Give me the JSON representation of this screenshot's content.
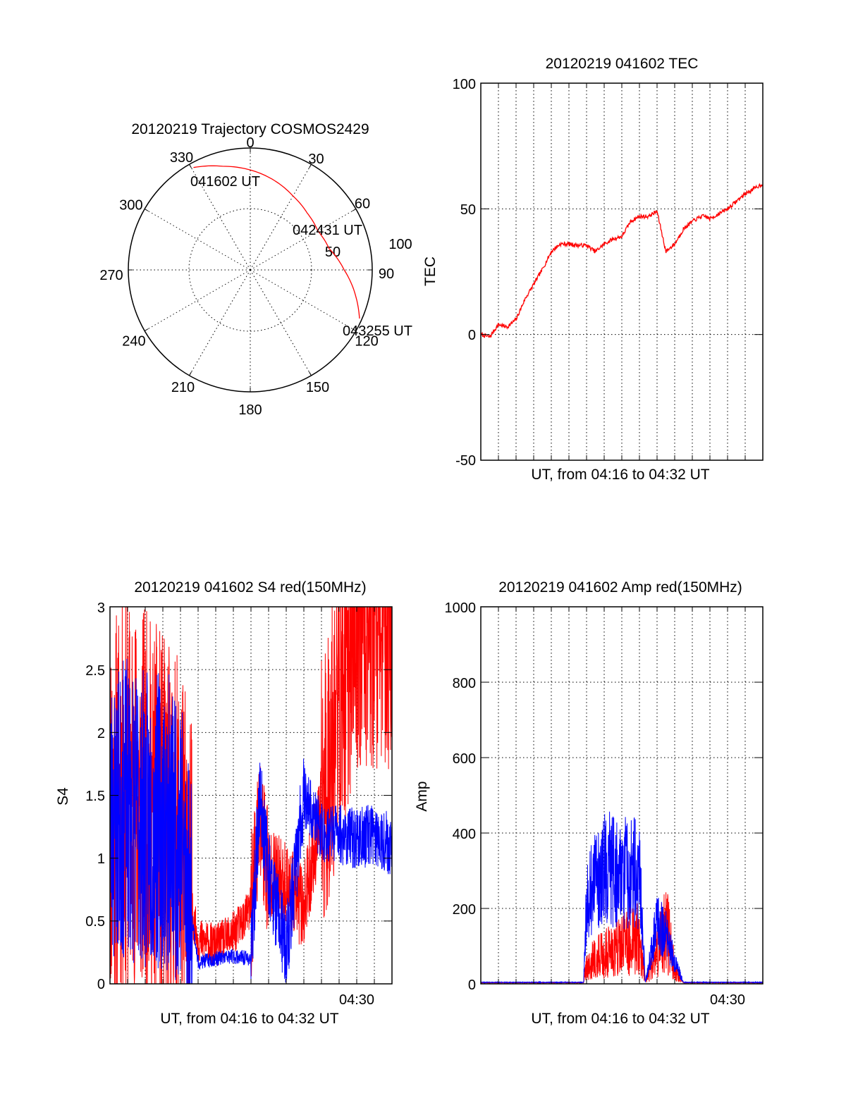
{
  "colors": {
    "red": "#ff0000",
    "blue": "#0000ff"
  },
  "polar": {
    "title": "20120219 Trajectory COSMOS2429",
    "azimuth_labels": [
      "0",
      "30",
      "60",
      "90",
      "120",
      "150",
      "180",
      "210",
      "240",
      "270",
      "300",
      "330"
    ],
    "range_labels": [
      "50",
      "100"
    ],
    "annotations": [
      "041602 UT",
      "042431 UT",
      "043255 UT"
    ]
  },
  "tec": {
    "title": "20120219 041602 TEC",
    "ylabel": "TEC",
    "xlabel": "UT, from 04:16 to 04:32 UT",
    "yticks": [
      "100",
      "50",
      "0",
      "-50"
    ]
  },
  "s4": {
    "title": "20120219 041602 S4 red(150MHz)",
    "ylabel": "S4",
    "xlabel": "UT, from 04:16 to 04:32 UT",
    "xtick_label": "04:30",
    "yticks": [
      "3",
      "2.5",
      "2",
      "1.5",
      "1",
      "0.5",
      "0"
    ]
  },
  "amp": {
    "title": "20120219 041602 Amp red(150MHz)",
    "ylabel": "Amp",
    "xlabel": "UT, from 04:16 to 04:32 UT",
    "xtick_label": "04:30",
    "yticks": [
      "1000",
      "800",
      "600",
      "400",
      "200",
      "0"
    ]
  },
  "chart_data": [
    {
      "type": "scatter",
      "subtype": "polar-trajectory",
      "title": "20120219 Trajectory COSMOS2429",
      "theta_ticks": [
        0,
        30,
        60,
        90,
        120,
        150,
        180,
        210,
        240,
        270,
        300,
        330
      ],
      "r_ticks": [
        50,
        100
      ],
      "points": [
        {
          "label": "041602 UT",
          "az": 331,
          "r": 96
        },
        {
          "label": "042431 UT",
          "az": 52,
          "r": 62
        },
        {
          "label": "043255 UT",
          "az": 114,
          "r": 98
        }
      ],
      "series": [
        {
          "color": "red",
          "az": [
            331,
            345,
            0,
            15,
            30,
            45,
            60,
            75,
            90,
            105,
            114
          ],
          "r": [
            96,
            88,
            82,
            76,
            70,
            66,
            64,
            67,
            77,
            90,
            98
          ]
        }
      ]
    },
    {
      "type": "line",
      "title": "20120219 041602 TEC",
      "xlabel": "UT, from 04:16 to 04:32 UT",
      "ylabel": "TEC",
      "xlim": [
        "04:16",
        "04:32"
      ],
      "ylim": [
        -50,
        100
      ],
      "grid": true,
      "series": [
        {
          "color": "red",
          "x": [
            "04:16:00",
            "04:16:30",
            "04:17:00",
            "04:17:30",
            "04:18:00",
            "04:18:30",
            "04:19:00",
            "04:19:30",
            "04:20:00",
            "04:20:30",
            "04:21:00",
            "04:21:30",
            "04:22:00",
            "04:22:30",
            "04:23:00",
            "04:23:30",
            "04:24:00",
            "04:24:30",
            "04:25:00",
            "04:25:30",
            "04:26:00",
            "04:26:30",
            "04:27:00",
            "04:27:30",
            "04:28:00",
            "04:28:30",
            "04:28:45",
            "04:29:00",
            "04:29:30",
            "04:30:00",
            "04:30:30",
            "04:31:00",
            "04:31:30",
            "04:32:00"
          ],
          "values": [
            0,
            -1,
            4,
            3,
            6,
            14,
            20,
            26,
            33,
            36,
            36,
            35.5,
            35.5,
            33,
            36,
            38,
            39,
            45,
            47,
            47,
            49,
            33,
            36,
            42,
            45,
            47,
            47,
            46,
            48,
            50,
            53,
            56,
            58,
            60
          ]
        }
      ]
    },
    {
      "type": "line",
      "title": "20120219 041602 S4 red(150MHz)",
      "xlabel": "UT, from 04:16 to 04:32 UT",
      "ylabel": "S4",
      "xlim": [
        "04:16",
        "04:32"
      ],
      "ylim": [
        0,
        3
      ],
      "xticks": [
        "04:30"
      ],
      "grid": true,
      "series": [
        {
          "color": "red",
          "x": [
            "04:16:00",
            "04:17:00",
            "04:18:00",
            "04:19:00",
            "04:20:00",
            "04:21:00",
            "04:22:00",
            "04:23:00",
            "04:24:00",
            "04:24:30",
            "04:25:00",
            "04:26:00",
            "04:27:00",
            "04:28:00",
            "04:29:00",
            "04:30:00",
            "04:31:00",
            "04:32:00"
          ],
          "values": [
            1.4,
            1.5,
            1.4,
            1.2,
            1.0,
            0.35,
            0.3,
            0.4,
            0.6,
            1.3,
            0.9,
            0.8,
            0.6,
            1.4,
            2.3,
            2.9,
            2.9,
            2.9
          ]
        },
        {
          "color": "blue",
          "x": [
            "04:16:00",
            "04:17:00",
            "04:18:00",
            "04:19:00",
            "04:20:00",
            "04:21:00",
            "04:22:00",
            "04:23:00",
            "04:24:00",
            "04:24:30",
            "04:25:00",
            "04:26:00",
            "04:27:00",
            "04:28:00",
            "04:29:00",
            "04:30:00",
            "04:31:00",
            "04:32:00"
          ],
          "values": [
            1.3,
            1.4,
            1.3,
            1.3,
            1.2,
            0.17,
            0.2,
            0.22,
            0.2,
            1.5,
            0.9,
            0.25,
            1.5,
            1.2,
            1.2,
            1.15,
            1.2,
            1.1
          ]
        }
      ]
    },
    {
      "type": "line",
      "title": "20120219 041602 Amp red(150MHz)",
      "xlabel": "UT, from 04:16 to 04:32 UT",
      "ylabel": "Amp",
      "xlim": [
        "04:16",
        "04:32"
      ],
      "ylim": [
        0,
        1000
      ],
      "xticks": [
        "04:30"
      ],
      "grid": true,
      "series": [
        {
          "color": "red",
          "x": [
            "04:16:00",
            "04:21:50",
            "04:22:00",
            "04:23:00",
            "04:24:00",
            "04:25:00",
            "04:25:20",
            "04:26:00",
            "04:26:30",
            "04:27:00",
            "04:27:30",
            "04:32:00"
          ],
          "values": [
            2,
            2,
            40,
            60,
            80,
            90,
            5,
            60,
            120,
            30,
            2,
            2
          ]
        },
        {
          "color": "blue",
          "x": [
            "04:16:00",
            "04:21:50",
            "04:22:00",
            "04:23:00",
            "04:24:00",
            "04:25:00",
            "04:25:20",
            "04:26:00",
            "04:26:30",
            "04:27:00",
            "04:27:30",
            "04:32:00"
          ],
          "values": [
            3,
            3,
            190,
            260,
            250,
            250,
            3,
            140,
            110,
            50,
            3,
            3
          ]
        }
      ]
    }
  ]
}
